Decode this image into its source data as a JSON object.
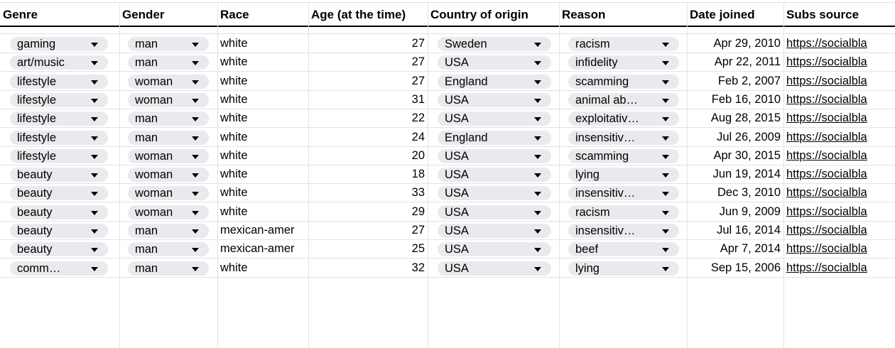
{
  "sheet": {
    "headers": [
      {
        "label": "Genre"
      },
      {
        "label": "Gender"
      },
      {
        "label": "Race"
      },
      {
        "label": "Age (at the time)"
      },
      {
        "label": "Country of origin"
      },
      {
        "label": "Reason"
      },
      {
        "label": "Date joined"
      },
      {
        "label": "Subs source"
      }
    ],
    "rows": [
      {
        "genre": "gaming",
        "gender": "man",
        "race": "white",
        "age": "27",
        "country": "Sweden",
        "reason": "racism",
        "date": "Apr 29, 2010",
        "source": "https://socialbla"
      },
      {
        "genre": "art/music",
        "gender": "man",
        "race": "white",
        "age": "27",
        "country": "USA",
        "reason": "infidelity",
        "date": "Apr 22, 2011",
        "source": "https://socialbla"
      },
      {
        "genre": "lifestyle",
        "gender": "woman",
        "race": "white",
        "age": "27",
        "country": "England",
        "reason": "scamming",
        "date": "Feb 2, 2007",
        "source": "https://socialbla"
      },
      {
        "genre": "lifestyle",
        "gender": "woman",
        "race": "white",
        "age": "31",
        "country": "USA",
        "reason": "animal ab…",
        "date": "Feb 16, 2010",
        "source": "https://socialbla"
      },
      {
        "genre": "lifestyle",
        "gender": "man",
        "race": "white",
        "age": "22",
        "country": "USA",
        "reason": "exploitativ…",
        "date": "Aug 28, 2015",
        "source": "https://socialbla"
      },
      {
        "genre": "lifestyle",
        "gender": "man",
        "race": "white",
        "age": "24",
        "country": "England",
        "reason": "insensitiv…",
        "date": "Jul 26, 2009",
        "source": "https://socialbla"
      },
      {
        "genre": "lifestyle",
        "gender": "woman",
        "race": "white",
        "age": "20",
        "country": "USA",
        "reason": "scamming",
        "date": "Apr 30, 2015",
        "source": "https://socialbla"
      },
      {
        "genre": "beauty",
        "gender": "woman",
        "race": "white",
        "age": "18",
        "country": "USA",
        "reason": "lying",
        "date": "Jun 19, 2014",
        "source": "https://socialbla"
      },
      {
        "genre": "beauty",
        "gender": "woman",
        "race": "white",
        "age": "33",
        "country": "USA",
        "reason": "insensitiv…",
        "date": "Dec 3, 2010",
        "source": "https://socialbla"
      },
      {
        "genre": "beauty",
        "gender": "woman",
        "race": "white",
        "age": "29",
        "country": "USA",
        "reason": "racism",
        "date": "Jun 9, 2009",
        "source": "https://socialbla"
      },
      {
        "genre": "beauty",
        "gender": "man",
        "race": "mexican-amer",
        "age": "27",
        "country": "USA",
        "reason": "insensitiv…",
        "date": "Jul 16, 2014",
        "source": "https://socialbla"
      },
      {
        "genre": "beauty",
        "gender": "man",
        "race": "mexican-amer",
        "age": "25",
        "country": "USA",
        "reason": "beef",
        "date": "Apr 7, 2014",
        "source": "https://socialbla"
      },
      {
        "genre": "comm…",
        "gender": "man",
        "race": "white",
        "age": "32",
        "country": "USA",
        "reason": "lying",
        "date": "Sep 15, 2006",
        "source": "https://socialbla"
      }
    ],
    "chip_color": "#e8eaed",
    "grid_color": "#e3e3e3"
  }
}
